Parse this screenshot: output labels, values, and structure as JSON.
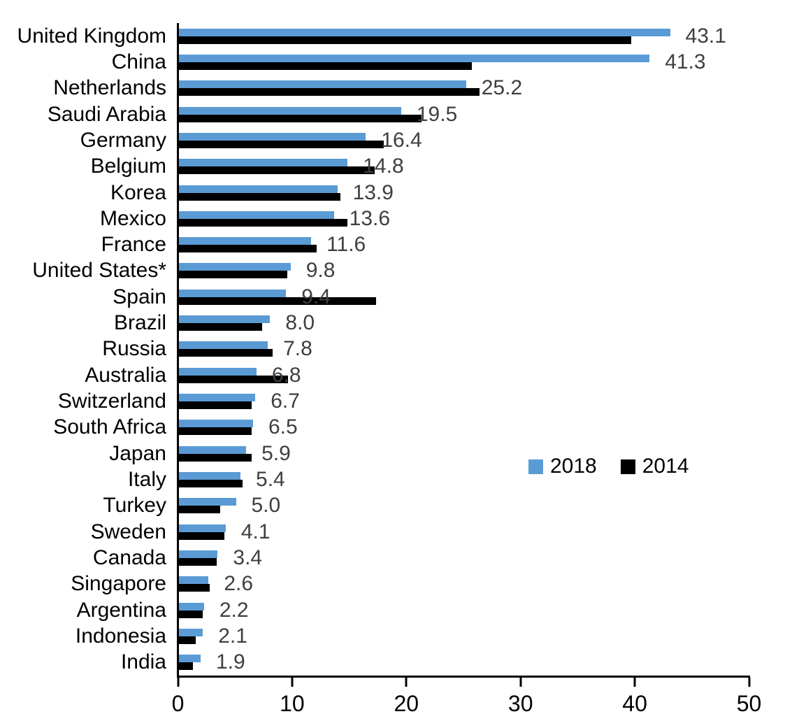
{
  "chart_data": {
    "type": "bar",
    "orientation": "horizontal",
    "title": "",
    "xlabel": "",
    "ylabel": "",
    "xlim": [
      0,
      50
    ],
    "xticks": [
      "0",
      "10",
      "20",
      "30",
      "40",
      "50"
    ],
    "grid": false,
    "legend_position": "middle-right",
    "categories": [
      "United Kingdom",
      "China",
      "Netherlands",
      "Saudi Arabia",
      "Germany",
      "Belgium",
      "Korea",
      "Mexico",
      "France",
      "United States*",
      "Spain",
      "Brazil",
      "Russia",
      "Australia",
      "Switzerland",
      "South Africa",
      "Japan",
      "Italy",
      "Turkey",
      "Sweden",
      "Canada",
      "Singapore",
      "Argentina",
      "Indonesia",
      "India"
    ],
    "series": [
      {
        "name": "2018",
        "color": "#5B9BD5",
        "data_labels_shown": true,
        "values": [
          43.1,
          41.3,
          25.2,
          19.5,
          16.4,
          14.8,
          13.9,
          13.6,
          11.6,
          9.8,
          9.4,
          8.0,
          7.8,
          6.8,
          6.7,
          6.5,
          5.9,
          5.4,
          5.0,
          4.1,
          3.4,
          2.6,
          2.2,
          2.1,
          1.9
        ]
      },
      {
        "name": "2014",
        "color": "#000000",
        "data_labels_shown": false,
        "values": [
          39.7,
          25.7,
          26.4,
          21.3,
          18.0,
          17.2,
          14.2,
          14.8,
          12.1,
          9.5,
          17.3,
          7.3,
          8.2,
          9.6,
          6.4,
          6.4,
          6.4,
          5.6,
          3.6,
          4.0,
          3.3,
          2.7,
          2.1,
          1.5,
          1.2
        ]
      }
    ],
    "data_label_values": [
      "43.1",
      "41.3",
      "25.2",
      "19.5",
      "16.4",
      "14.8",
      "13.9",
      "13.6",
      "11.6",
      "9.8",
      "9.4",
      "8.0",
      "7.8",
      "6.8",
      "6.7",
      "6.5",
      "5.9",
      "5.4",
      "5.0",
      "4.1",
      "3.4",
      "2.6",
      "2.2",
      "2.1",
      "1.9"
    ],
    "data_label_color": "#3F3F3F"
  },
  "legend": {
    "items": [
      {
        "label": "2018",
        "color": "#5B9BD5"
      },
      {
        "label": "2014",
        "color": "#000000"
      }
    ]
  }
}
